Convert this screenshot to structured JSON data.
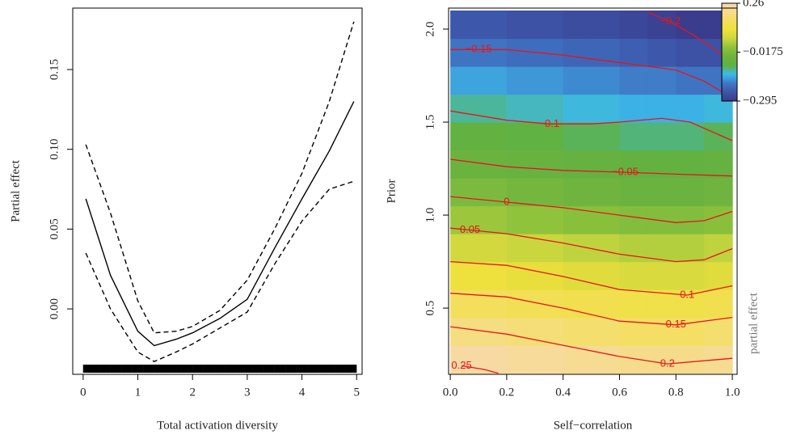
{
  "chart_data": [
    {
      "type": "line",
      "xlabel": "Total activation diversity",
      "ylabel": "Partial effect",
      "x": [
        0.05,
        0.5,
        1.0,
        1.3,
        1.7,
        2.0,
        2.5,
        3.0,
        3.5,
        4.0,
        4.5,
        4.95
      ],
      "series": [
        {
          "color": "#000000",
          "dash": "solid",
          "values": [
            0.069,
            0.021,
            -0.014,
            -0.023,
            -0.019,
            -0.015,
            -0.006,
            0.006,
            0.038,
            0.069,
            0.099,
            0.13
          ]
        },
        {
          "color": "#000000",
          "dash": "dashed",
          "values": [
            0.103,
            0.06,
            0.005,
            -0.015,
            -0.014,
            -0.011,
            -0.001,
            0.018,
            0.05,
            0.085,
            0.13,
            0.18
          ]
        },
        {
          "color": "#000000",
          "dash": "dashed",
          "values": [
            0.035,
            0.0,
            -0.027,
            -0.033,
            -0.027,
            -0.022,
            -0.012,
            -0.002,
            0.028,
            0.055,
            0.075,
            0.08
          ]
        }
      ],
      "rug": [
        0.05,
        0.15,
        0.25,
        0.35,
        0.45,
        0.55,
        0.65,
        0.75,
        0.85,
        0.95,
        1.05,
        1.15,
        1.25,
        1.35,
        1.45,
        1.55,
        1.65,
        1.75,
        1.85,
        1.95,
        2.05,
        2.15,
        2.25,
        2.35,
        2.45,
        2.55,
        2.65,
        2.75,
        2.85,
        2.95,
        3.05,
        3.15,
        3.25,
        3.35,
        3.45,
        3.55,
        3.65,
        3.75,
        3.85,
        3.95,
        4.05,
        4.15,
        4.25,
        4.35,
        4.45,
        4.55,
        4.65,
        4.75,
        4.85,
        4.95
      ],
      "xlim": [
        -0.19,
        5.1
      ],
      "ylim": [
        -0.041,
        0.1885
      ],
      "xticks": [
        0,
        1,
        2,
        3,
        4,
        5
      ],
      "yticks": [
        {
          "value": 0,
          "label": "0.00"
        },
        0.05,
        {
          "value": 0.1,
          "label": "0.10"
        },
        0.15
      ]
    },
    {
      "type": "heatmap",
      "xlabel": "Self−correlation",
      "ylabel": "Prior",
      "x": [
        0.05,
        0.15,
        0.25,
        0.35,
        0.45,
        0.55,
        0.65,
        0.75,
        0.85,
        0.95
      ],
      "y": [
        0.225,
        0.375,
        0.525,
        0.675,
        0.825,
        0.975,
        1.125,
        1.275,
        1.425,
        1.575,
        1.725,
        1.875,
        2.025
      ],
      "cell_width": 0.1,
      "cell_height": 0.15,
      "values": [
        [
          0.24,
          0.24,
          0.23,
          0.23,
          0.22,
          0.22,
          0.21,
          0.21,
          0.21,
          0.22
        ],
        [
          0.2,
          0.2,
          0.19,
          0.19,
          0.18,
          0.18,
          0.17,
          0.17,
          0.17,
          0.18
        ],
        [
          0.16,
          0.16,
          0.15,
          0.15,
          0.14,
          0.14,
          0.13,
          0.13,
          0.13,
          0.14
        ],
        [
          0.11,
          0.11,
          0.1,
          0.1,
          0.09,
          0.09,
          0.08,
          0.08,
          0.08,
          0.09
        ],
        [
          0.07,
          0.07,
          0.06,
          0.06,
          0.05,
          0.05,
          0.04,
          0.04,
          0.04,
          0.05
        ],
        [
          0.02,
          0.02,
          0.01,
          0.01,
          0.0,
          0.0,
          -0.01,
          -0.01,
          -0.01,
          0.0
        ],
        [
          -0.02,
          -0.02,
          -0.03,
          -0.03,
          -0.04,
          -0.04,
          -0.05,
          -0.05,
          -0.05,
          -0.04
        ],
        [
          -0.05,
          -0.05,
          -0.06,
          -0.06,
          -0.07,
          -0.07,
          -0.08,
          -0.08,
          -0.08,
          -0.07
        ],
        [
          -0.08,
          -0.08,
          -0.09,
          -0.09,
          -0.1,
          -0.1,
          -0.11,
          -0.11,
          -0.11,
          -0.1
        ],
        [
          -0.12,
          -0.12,
          -0.13,
          -0.13,
          -0.14,
          -0.14,
          -0.15,
          -0.15,
          -0.15,
          -0.14
        ],
        [
          -0.16,
          -0.16,
          -0.17,
          -0.17,
          -0.18,
          -0.18,
          -0.19,
          -0.19,
          -0.2,
          -0.2
        ],
        [
          -0.2,
          -0.2,
          -0.21,
          -0.21,
          -0.22,
          -0.22,
          -0.23,
          -0.24,
          -0.25,
          -0.25
        ],
        [
          -0.24,
          -0.24,
          -0.25,
          -0.25,
          -0.26,
          -0.26,
          -0.27,
          -0.28,
          -0.29,
          -0.29
        ]
      ],
      "contour_color": "#e8141c",
      "contours": [
        {
          "label": "−0.2",
          "x": [
            0.7,
            0.78,
            0.86,
            0.93,
            1.0
          ],
          "y": [
            2.09,
            2.04,
            1.97,
            1.9,
            1.82
          ]
        },
        {
          "label": "−0.15",
          "x": [
            0.0,
            0.1,
            0.2,
            0.4,
            0.6,
            0.8,
            0.9,
            1.0
          ],
          "y": [
            1.89,
            1.89,
            1.89,
            1.86,
            1.82,
            1.78,
            1.72,
            1.63
          ]
        },
        {
          "label": "−0.1",
          "x": [
            0.0,
            0.2,
            0.35,
            0.5,
            0.6,
            0.75,
            0.85,
            1.0
          ],
          "y": [
            1.56,
            1.51,
            1.49,
            1.49,
            1.5,
            1.52,
            1.5,
            1.4
          ]
        },
        {
          "label": "−0.05",
          "x": [
            0.0,
            0.2,
            0.4,
            0.62,
            0.8,
            1.0
          ],
          "y": [
            1.3,
            1.26,
            1.24,
            1.23,
            1.22,
            1.21
          ]
        },
        {
          "label": "0",
          "x": [
            0.0,
            0.2,
            0.4,
            0.6,
            0.8,
            0.9,
            1.0
          ],
          "y": [
            1.1,
            1.07,
            1.04,
            1.0,
            0.96,
            0.97,
            1.02
          ]
        },
        {
          "label": "0.05",
          "x": [
            0.0,
            0.07,
            0.2,
            0.4,
            0.6,
            0.8,
            0.9,
            1.0
          ],
          "y": [
            0.93,
            0.92,
            0.9,
            0.85,
            0.79,
            0.75,
            0.76,
            0.82
          ]
        },
        {
          "label": "0.1",
          "x": [
            0.0,
            0.2,
            0.4,
            0.6,
            0.84,
            1.0
          ],
          "y": [
            0.75,
            0.73,
            0.67,
            0.6,
            0.57,
            0.62
          ]
        },
        {
          "label": "0.15",
          "x": [
            0.0,
            0.2,
            0.4,
            0.6,
            0.8,
            1.0
          ],
          "y": [
            0.58,
            0.56,
            0.5,
            0.43,
            0.41,
            0.45
          ]
        },
        {
          "label": "0.2",
          "x": [
            0.0,
            0.2,
            0.4,
            0.6,
            0.77,
            1.0
          ],
          "y": [
            0.4,
            0.36,
            0.3,
            0.24,
            0.2,
            0.23
          ]
        },
        {
          "label": "0.25",
          "x": [
            0.04,
            0.12,
            0.17
          ],
          "y": [
            0.19,
            0.17,
            0.15
          ]
        }
      ],
      "colorbar": {
        "label": "partial effect",
        "lim": [
          -0.295,
          0.26
        ],
        "ticks": [
          {
            "value": -0.295,
            "label": "−0.295"
          },
          {
            "value": -0.0175,
            "label": "−0.0175"
          },
          0.26
        ],
        "colors": [
          "#3a3a8a",
          "#3d55a8",
          "#3f78c6",
          "#3cb9ea",
          "#5fb242",
          "#6db33f",
          "#8dc23c",
          "#c9d63e",
          "#eee03c",
          "#f3df5a",
          "#f6dc8a",
          "#f8d9b4"
        ]
      },
      "xlim": [
        -0.006,
        1.017
      ],
      "ylim": [
        0.144,
        2.113
      ],
      "xticks": [
        {
          "value": 0,
          "label": "0.0"
        },
        0.2,
        0.4,
        0.6,
        0.8,
        {
          "value": 1,
          "label": "1.0"
        }
      ],
      "yticks": [
        0.5,
        {
          "value": 1,
          "label": "1.0"
        },
        1.5,
        {
          "value": 2,
          "label": "2.0"
        }
      ]
    }
  ]
}
